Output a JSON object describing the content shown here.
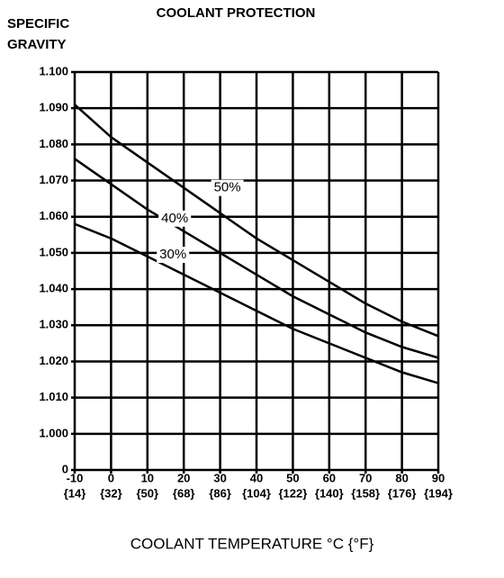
{
  "chart_data": {
    "type": "line",
    "title": "COOLANT PROTECTION",
    "ylabel": [
      "SPECIFIC",
      "GRAVITY"
    ],
    "xlabel": "COOLANT TEMPERATURE °C {°F}",
    "x": [
      -10,
      0,
      10,
      20,
      30,
      40,
      50,
      60,
      70,
      80,
      90
    ],
    "xlim": [
      -10,
      90
    ],
    "xticks": [
      -10,
      0,
      10,
      20,
      30,
      40,
      50,
      60,
      70,
      80,
      90
    ],
    "xticks_f": [
      "{14}",
      "{32}",
      "{50}",
      "{68}",
      "{86}",
      "{104}",
      "{122}",
      "{140}",
      "{158}",
      "{176}",
      "{194}"
    ],
    "ylim": [
      0.99,
      1.1
    ],
    "yticks": [
      {
        "value": 0.99,
        "label": "0"
      },
      {
        "value": 1.0,
        "label": "1.000"
      },
      {
        "value": 1.01,
        "label": "1.010"
      },
      {
        "value": 1.02,
        "label": "1.020"
      },
      {
        "value": 1.03,
        "label": "1.030"
      },
      {
        "value": 1.04,
        "label": "1.040"
      },
      {
        "value": 1.05,
        "label": "1.050"
      },
      {
        "value": 1.06,
        "label": "1.060"
      },
      {
        "value": 1.07,
        "label": "1.070"
      },
      {
        "value": 1.08,
        "label": "1.080"
      },
      {
        "value": 1.09,
        "label": "1.090"
      },
      {
        "value": 1.1,
        "label": "1.100"
      }
    ],
    "grid": true,
    "series": [
      {
        "name": "50%",
        "color": "#000000",
        "values": [
          1.091,
          1.082,
          1.075,
          1.068,
          1.061,
          1.054,
          1.048,
          1.042,
          1.036,
          1.031,
          1.027
        ]
      },
      {
        "name": "40%",
        "color": "#000000",
        "values": [
          1.076,
          1.069,
          1.062,
          1.056,
          1.05,
          1.044,
          1.038,
          1.033,
          1.028,
          1.024,
          1.021
        ]
      },
      {
        "name": "30%",
        "color": "#000000",
        "values": [
          1.058,
          1.054,
          1.049,
          1.044,
          1.039,
          1.034,
          1.029,
          1.025,
          1.021,
          1.017,
          1.014
        ]
      }
    ]
  }
}
